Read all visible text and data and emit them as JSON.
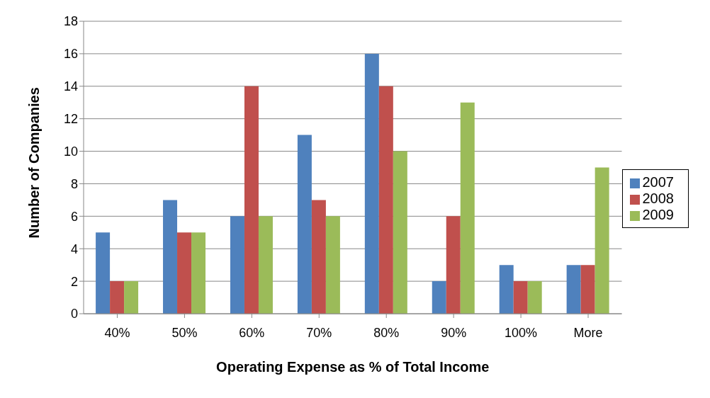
{
  "chart_data": {
    "type": "bar",
    "xlabel": "Operating Expense as % of Total Income",
    "ylabel": "Number of Companies",
    "categories": [
      "40%",
      "50%",
      "60%",
      "70%",
      "80%",
      "90%",
      "100%",
      "More"
    ],
    "series": [
      {
        "name": "2007",
        "color": "#4f81bd",
        "values": [
          5,
          7,
          6,
          11,
          16,
          2,
          3,
          3
        ]
      },
      {
        "name": "2008",
        "color": "#c0504d",
        "values": [
          2,
          5,
          14,
          7,
          14,
          6,
          2,
          3
        ]
      },
      {
        "name": "2009",
        "color": "#9bbb59",
        "values": [
          2,
          5,
          6,
          6,
          10,
          13,
          2,
          9
        ]
      }
    ],
    "ylim": [
      0,
      18
    ],
    "yticks": [
      0,
      2,
      4,
      6,
      8,
      10,
      12,
      14,
      16,
      18
    ],
    "grid": "y",
    "legend": "right"
  }
}
